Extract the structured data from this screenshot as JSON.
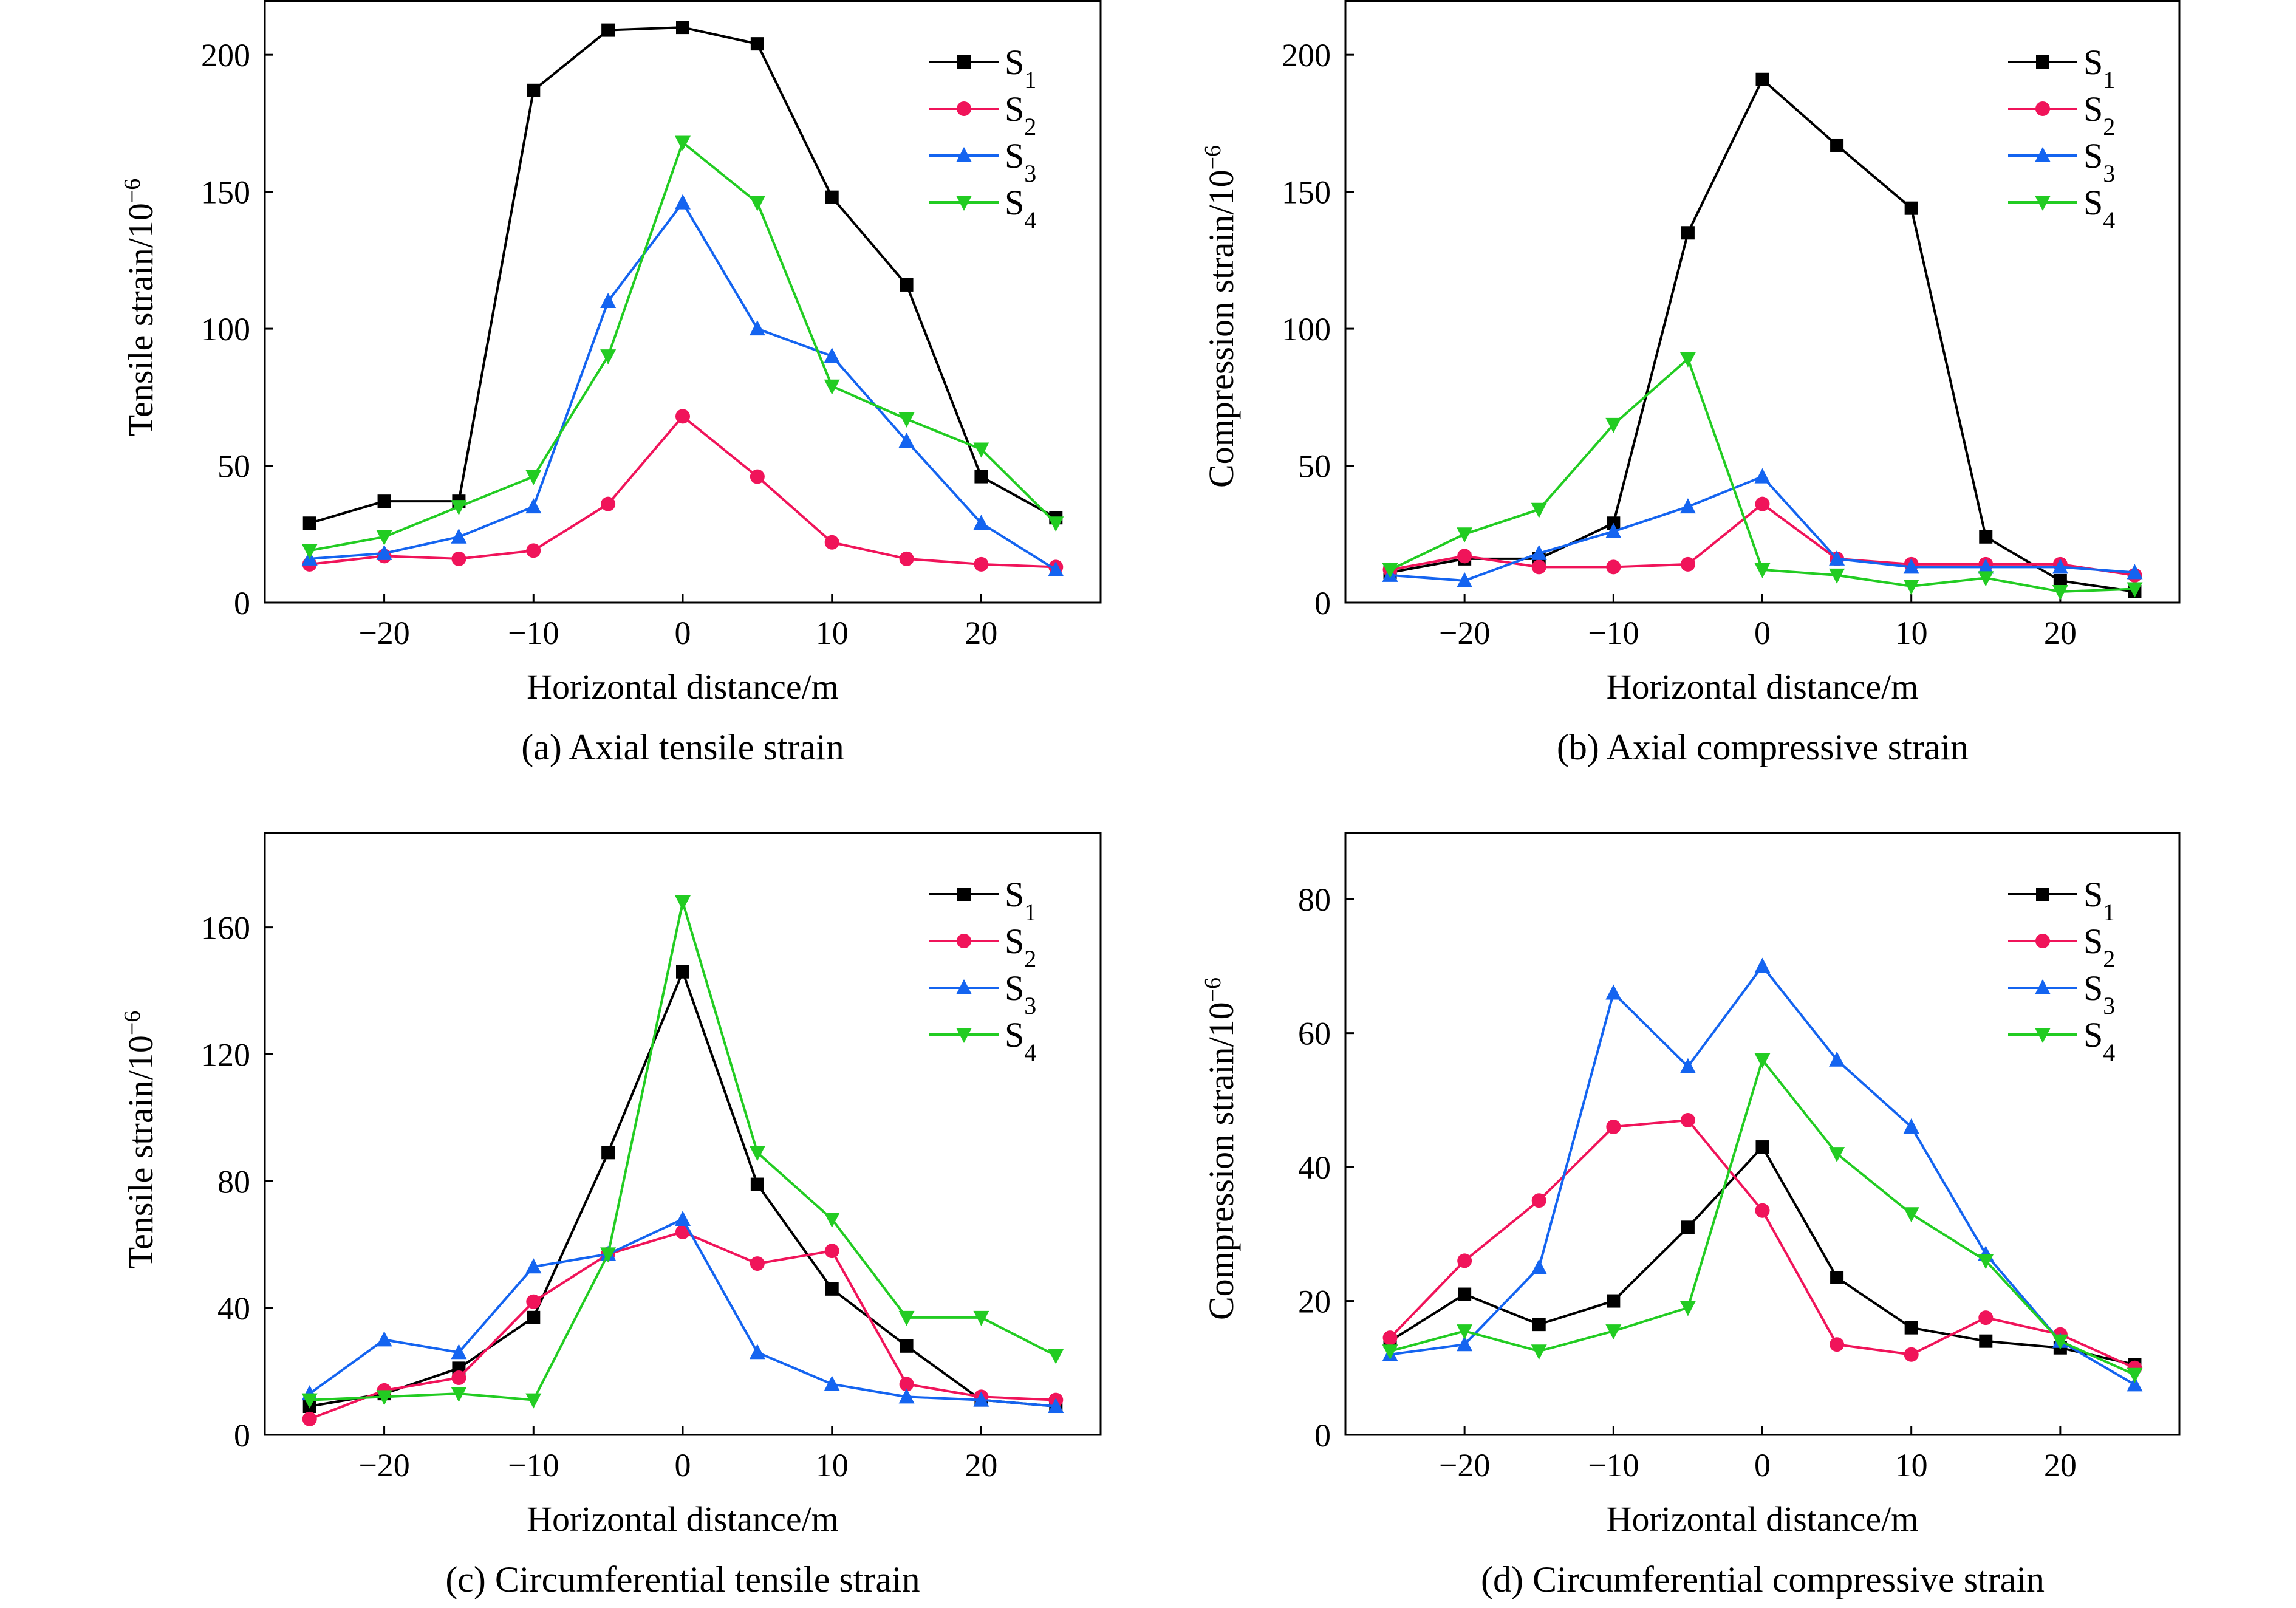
{
  "series_style": {
    "S1": {
      "color": "#000000",
      "marker": "square"
    },
    "S2": {
      "color": "#f0145a",
      "marker": "circle"
    },
    "S3": {
      "color": "#1464f0",
      "marker": "triangle-up"
    },
    "S4": {
      "color": "#22cc22",
      "marker": "triangle-down"
    }
  },
  "chart_data": [
    {
      "type": "line",
      "caption": "(a) Axial tensile strain",
      "xlabel": "Horizontal distance/m",
      "ylabel": "Tensile strain/10",
      "ylabel_exp": "−6",
      "xlim": [
        -28,
        28
      ],
      "ylim": [
        0,
        220
      ],
      "xticks": [
        -20,
        -10,
        0,
        10,
        20
      ],
      "xtick_labels": [
        "−20",
        "−10",
        "0",
        "10",
        "20"
      ],
      "yticks": [
        0,
        50,
        100,
        150,
        200
      ],
      "ytick_labels": [
        "0",
        "50",
        "100",
        "150",
        "200"
      ],
      "legend": "top-right",
      "x": [
        -25,
        -20,
        -15,
        -10,
        -5,
        0,
        5,
        10,
        15,
        20,
        25
      ],
      "series": [
        {
          "name": "S",
          "sub": "1",
          "key": "S1",
          "values": [
            29,
            37,
            37,
            187,
            209,
            210,
            204,
            148,
            116,
            46,
            31
          ]
        },
        {
          "name": "S",
          "sub": "2",
          "key": "S2",
          "values": [
            14,
            17,
            16,
            19,
            36,
            68,
            46,
            22,
            16,
            14,
            13
          ]
        },
        {
          "name": "S",
          "sub": "3",
          "key": "S3",
          "values": [
            16,
            18,
            24,
            35,
            110,
            146,
            100,
            90,
            59,
            29,
            12
          ]
        },
        {
          "name": "S",
          "sub": "4",
          "key": "S4",
          "values": [
            19,
            24,
            35,
            46,
            90,
            168,
            146,
            79,
            67,
            56,
            29
          ]
        }
      ]
    },
    {
      "type": "line",
      "caption": "(b) Axial compressive strain",
      "xlabel": "Horizontal distance/m",
      "ylabel": "Compression strain/10",
      "ylabel_exp": "−6",
      "xlim": [
        -28,
        28
      ],
      "ylim": [
        0,
        220
      ],
      "xticks": [
        -20,
        -10,
        0,
        10,
        20
      ],
      "xtick_labels": [
        "−20",
        "−10",
        "0",
        "10",
        "20"
      ],
      "yticks": [
        0,
        50,
        100,
        150,
        200
      ],
      "ytick_labels": [
        "0",
        "50",
        "100",
        "150",
        "200"
      ],
      "legend": "top-right",
      "x": [
        -25,
        -20,
        -15,
        -10,
        -5,
        0,
        5,
        10,
        15,
        20,
        25
      ],
      "series": [
        {
          "name": "S",
          "sub": "1",
          "key": "S1",
          "values": [
            11,
            16,
            16,
            29,
            135,
            191,
            167,
            144,
            24,
            8,
            4
          ]
        },
        {
          "name": "S",
          "sub": "2",
          "key": "S2",
          "values": [
            12,
            17,
            13,
            13,
            14,
            36,
            16,
            14,
            14,
            14,
            10
          ]
        },
        {
          "name": "S",
          "sub": "3",
          "key": "S3",
          "values": [
            10,
            8,
            18,
            26,
            35,
            46,
            16,
            13,
            13,
            13,
            11
          ]
        },
        {
          "name": "S",
          "sub": "4",
          "key": "S4",
          "values": [
            12,
            25,
            34,
            65,
            89,
            12,
            10,
            6,
            9,
            4,
            5
          ]
        }
      ]
    },
    {
      "type": "line",
      "caption": "(c) Circumferential tensile strain",
      "xlabel": "Horizontal distance/m",
      "ylabel": "Tensile strain/10",
      "ylabel_exp": "−6",
      "xlim": [
        -28,
        28
      ],
      "ylim": [
        0,
        190
      ],
      "xticks": [
        -20,
        -10,
        0,
        10,
        20
      ],
      "xtick_labels": [
        "−20",
        "−10",
        "0",
        "10",
        "20"
      ],
      "yticks": [
        0,
        40,
        80,
        120,
        160
      ],
      "ytick_labels": [
        "0",
        "40",
        "80",
        "120",
        "160"
      ],
      "legend": "top-right",
      "x": [
        -25,
        -20,
        -15,
        -10,
        -5,
        0,
        5,
        10,
        15,
        20,
        25
      ],
      "series": [
        {
          "name": "S",
          "sub": "1",
          "key": "S1",
          "values": [
            9,
            13,
            21,
            37,
            89,
            146,
            79,
            46,
            28,
            11,
            9
          ]
        },
        {
          "name": "S",
          "sub": "2",
          "key": "S2",
          "values": [
            5,
            14,
            18,
            42,
            57,
            64,
            54,
            58,
            16,
            12,
            11
          ]
        },
        {
          "name": "S",
          "sub": "3",
          "key": "S3",
          "values": [
            13,
            30,
            26,
            53,
            57,
            68,
            26,
            16,
            12,
            11,
            9
          ]
        },
        {
          "name": "S",
          "sub": "4",
          "key": "S4",
          "values": [
            11,
            12,
            13,
            11,
            57,
            168,
            89,
            68,
            37,
            37,
            25
          ]
        }
      ]
    },
    {
      "type": "line",
      "caption": "(d) Circumferential compressive strain",
      "xlabel": "Horizontal distance/m",
      "ylabel": "Compression strain/10",
      "ylabel_exp": "−6",
      "xlim": [
        -28,
        28
      ],
      "ylim": [
        0,
        90
      ],
      "xticks": [
        -20,
        -10,
        0,
        10,
        20
      ],
      "xtick_labels": [
        "−20",
        "−10",
        "0",
        "10",
        "20"
      ],
      "yticks": [
        0,
        20,
        40,
        60,
        80
      ],
      "ytick_labels": [
        "0",
        "20",
        "40",
        "60",
        "80"
      ],
      "legend": "top-right",
      "x": [
        -25,
        -20,
        -15,
        -10,
        -5,
        0,
        5,
        10,
        15,
        20,
        25
      ],
      "series": [
        {
          "name": "S",
          "sub": "1",
          "key": "S1",
          "values": [
            14,
            21,
            16.5,
            20,
            31,
            43,
            23.5,
            16,
            14,
            13,
            10.5
          ]
        },
        {
          "name": "S",
          "sub": "2",
          "key": "S2",
          "values": [
            14.5,
            26,
            35,
            46,
            47,
            33.5,
            13.5,
            12,
            17.5,
            15,
            10
          ]
        },
        {
          "name": "S",
          "sub": "3",
          "key": "S3",
          "values": [
            12,
            13.5,
            25,
            66,
            55,
            70,
            56,
            46,
            27,
            14,
            7.5
          ]
        },
        {
          "name": "S",
          "sub": "4",
          "key": "S4",
          "values": [
            12.5,
            15.5,
            12.5,
            15.5,
            19,
            56,
            42,
            33,
            26,
            14,
            9
          ]
        }
      ]
    }
  ]
}
